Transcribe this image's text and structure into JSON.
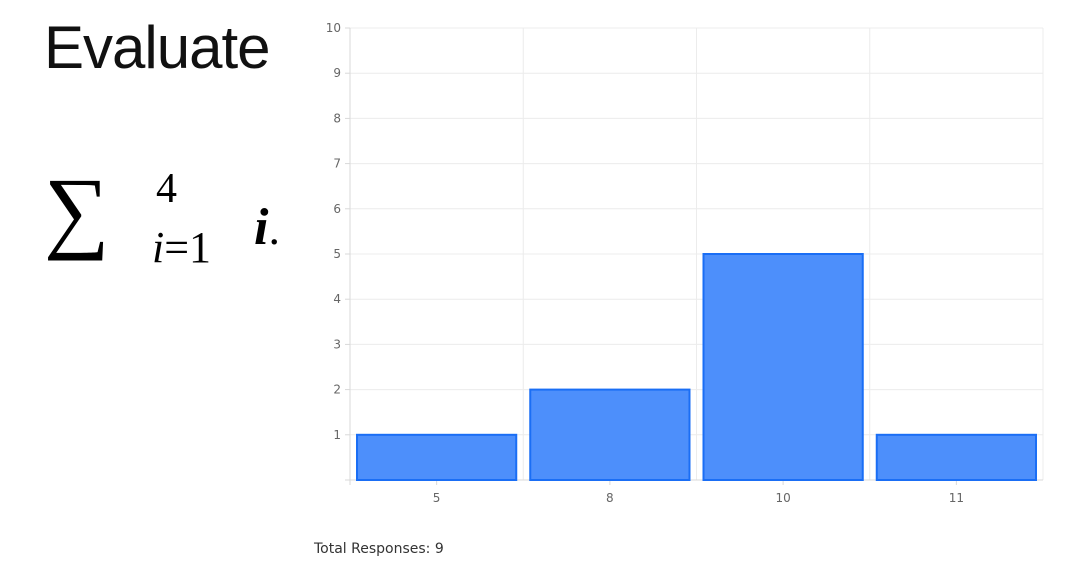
{
  "question": {
    "title": "Evaluate",
    "formula": {
      "symbol": "∑",
      "upper": "4",
      "lower_var": "i",
      "lower_rest": "=1",
      "term_var": "i",
      "term_end": "."
    }
  },
  "chart_data": {
    "type": "bar",
    "categories": [
      "5",
      "8",
      "10",
      "11"
    ],
    "values": [
      1,
      2,
      5,
      1
    ],
    "ylim": [
      0,
      10
    ],
    "yticks": [
      1,
      2,
      3,
      4,
      5,
      6,
      7,
      8,
      9,
      10
    ],
    "grid": true,
    "bar_fill": "#4d8ffb",
    "bar_stroke": "#1a6ef5"
  },
  "footer": {
    "total_label": "Total Responses: 9"
  }
}
